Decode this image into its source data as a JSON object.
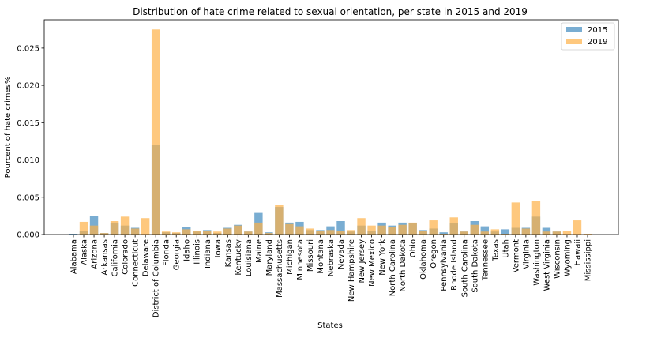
{
  "chart_data": {
    "type": "bar",
    "title": "Distribution of hate crime related to sexual orientation, per state in 2015 and 2019",
    "xlabel": "States",
    "ylabel": "Pourcent of hate crimes%",
    "ylim": [
      0,
      0.0288
    ],
    "yticks": [
      "0.000",
      "0.005",
      "0.010",
      "0.015",
      "0.020",
      "0.025"
    ],
    "ytick_values": [
      0,
      0.005,
      0.01,
      0.015,
      0.02,
      0.025
    ],
    "legend_position": "top-right",
    "categories": [
      "Alabama",
      "Alaska",
      "Arizona",
      "Arkansas",
      "California",
      "Colorado",
      "Connecticut",
      "Delaware",
      "District of Columbia",
      "Florida",
      "Georgia",
      "Idaho",
      "Illinois",
      "Indiana",
      "Iowa",
      "Kansas",
      "Kentucky",
      "Louisiana",
      "Maine",
      "Maryland",
      "Massachusetts",
      "Michigan",
      "Minnesota",
      "Missouri",
      "Montana",
      "Nebraska",
      "Nevada",
      "New Hampshire",
      "New Jersey",
      "New Mexico",
      "New York",
      "North Carolina",
      "North Dakota",
      "Ohio",
      "Oklahoma",
      "Oregon",
      "Pennsylvania",
      "Rhode Island",
      "South Carolina",
      "South Dakota",
      "Tennessee",
      "Texas",
      "Utah",
      "Vermont",
      "Virginia",
      "Washington",
      "West Virginia",
      "Wisconsin",
      "Wyoming",
      "Hawaii",
      "Mississippi"
    ],
    "series": [
      {
        "name": "2015",
        "color": "#1f77b4",
        "alpha": 0.6,
        "values": [
          0.0001,
          0.0005,
          0.0025,
          0.0002,
          0.0016,
          0.0012,
          0.0009,
          0,
          0.012,
          0.0003,
          0.0002,
          0.001,
          0.0004,
          0.0006,
          0.0002,
          0.0009,
          0.0013,
          0.0004,
          0.0029,
          0.0003,
          0.0037,
          0.0016,
          0.0017,
          0.0006,
          0.0006,
          0.0011,
          0.0018,
          0.0004,
          0.0012,
          0.0005,
          0.0016,
          0.0012,
          0.0016,
          0.0015,
          0.0006,
          0.0008,
          0.0003,
          0.0015,
          0.0004,
          0.0018,
          0.0011,
          0.0004,
          0.0007,
          0.0009,
          0.0009,
          0.0024,
          0.0009,
          0.0004,
          0,
          0,
          0
        ]
      },
      {
        "name": "2019",
        "color": "#fdb147",
        "alpha": 0.7,
        "values": [
          0,
          0.0017,
          0.0012,
          0.0002,
          0.0018,
          0.0024,
          0.0008,
          0.0022,
          0.0275,
          0.0004,
          0.0003,
          0.0007,
          0.0005,
          0.0005,
          0.0004,
          0.0008,
          0.0012,
          0.0004,
          0.0016,
          0.0002,
          0.004,
          0.0014,
          0.0011,
          0.0008,
          0.0005,
          0.0006,
          0.0005,
          0.0006,
          0.0022,
          0.0012,
          0.0012,
          0.001,
          0.0013,
          0.0016,
          0.0005,
          0.0019,
          0.0001,
          0.0023,
          0.0004,
          0.0013,
          0.0004,
          0.0007,
          0.0001,
          0.0043,
          0.0008,
          0.0045,
          0.0004,
          0.0004,
          0.0005,
          0.0019,
          0.0001
        ]
      }
    ]
  }
}
